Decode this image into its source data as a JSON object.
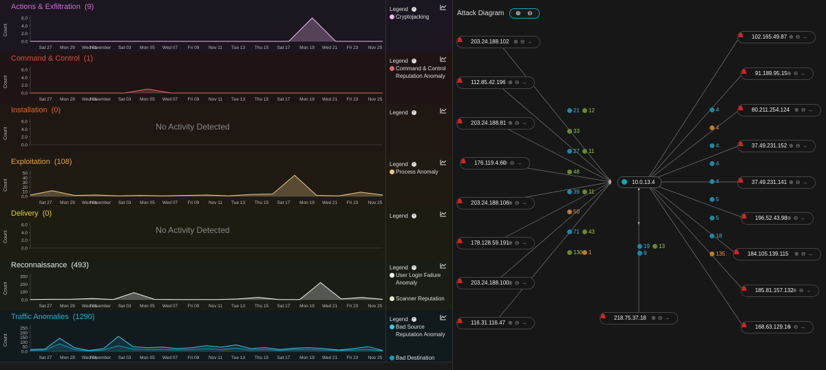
{
  "x_ticks": [
    "Sat 27",
    "Mon 29",
    "Wed 01",
    "November",
    "Sat 03",
    "Mon 05",
    "Wed 07",
    "Fri 09",
    "Nov 11",
    "Tue 13",
    "Thu 15",
    "Sat 17",
    "Mon 19",
    "Wed 21",
    "Fri 23",
    "Nov 25"
  ],
  "legend_label": "Legend",
  "no_activity": "No Activity Detected",
  "count_label": "Count",
  "panels": [
    {
      "title": "Actions & Exfiltration",
      "count": "(9)",
      "color": "#c76fd0",
      "bg": "#1c1620",
      "yticks": [
        "6.0",
        "4.0",
        "2.0",
        "0.0"
      ],
      "legend": [
        {
          "label": "Cryptojacking",
          "color": "#e8b8ee"
        }
      ]
    },
    {
      "title": "Command & Control",
      "count": "(1)",
      "color": "#e04545",
      "bg": "#1f1414",
      "yticks": [
        "6.0",
        "4.0",
        "2.0",
        "0.0"
      ],
      "legend": [
        {
          "label": "Command & Control Reputation Anomaly",
          "color": "#e26a6a"
        }
      ]
    },
    {
      "title": "Installation",
      "count": "(0)",
      "color": "#e0662d",
      "bg": "#1f1712",
      "yticks": [
        "6.0",
        "4.0",
        "2.0",
        "0.0"
      ],
      "legend": []
    },
    {
      "title": "Exploitation",
      "count": "(108)",
      "color": "#e0a24a",
      "bg": "#1f1a12",
      "yticks": [
        "50",
        "40",
        "30",
        "20",
        "10",
        "0.0"
      ],
      "legend": [
        {
          "label": "Process Anomaly",
          "color": "#f0c88a"
        }
      ]
    },
    {
      "title": "Delivery",
      "count": "(0)",
      "color": "#e0d02a",
      "bg": "#1d1c10",
      "yticks": [
        "6.0",
        "4.0",
        "2.0",
        "0.0"
      ],
      "legend": []
    },
    {
      "title": "Reconnaissance",
      "count": "(493)",
      "color": "#e8e8e8",
      "bg": "#1a1d15",
      "yticks": [
        "300",
        "200",
        "100",
        "0.0"
      ],
      "legend": [
        {
          "label": "User Login Failure Anomaly",
          "color": "#f2f2f2"
        },
        {
          "label": "Scanner Reputation",
          "color": "#e8e8c8"
        }
      ]
    },
    {
      "title": "Traffic Anomalies",
      "count": "(1290)",
      "color": "#2aaed0",
      "bg": "#111b1e",
      "yticks": [
        "250",
        "200",
        "150",
        "100",
        "50",
        "0.0"
      ],
      "legend": [
        {
          "label": "Bad Source Reputation Anomaly",
          "color": "#3cc8ec"
        },
        {
          "label": "Bad Destination Reputation",
          "color": "#1a9ab8"
        }
      ]
    }
  ],
  "chart_data": [
    {
      "type": "area",
      "title": "Actions & Exfiltration",
      "ylabel": "Count",
      "ylim": [
        0,
        6
      ],
      "categories_ref": "x_ticks",
      "series": [
        {
          "name": "Cryptojacking",
          "values": [
            0,
            0,
            0,
            0,
            0,
            0,
            0,
            0,
            0,
            0,
            0,
            0,
            6,
            0,
            0,
            0
          ]
        }
      ]
    },
    {
      "type": "area",
      "title": "Command & Control",
      "ylabel": "Count",
      "ylim": [
        0,
        6
      ],
      "series": [
        {
          "name": "Command & Control Reputation Anomaly",
          "values": [
            0,
            0,
            0,
            0,
            0,
            1,
            0,
            0,
            0,
            0,
            0,
            0,
            0,
            0,
            0,
            0
          ]
        }
      ]
    },
    {
      "type": "area",
      "title": "Exploitation",
      "ylabel": "Count",
      "ylim": [
        0,
        50
      ],
      "series": [
        {
          "name": "Process Anomaly",
          "values": [
            3,
            12,
            2,
            3,
            1,
            2,
            1,
            2,
            3,
            1,
            4,
            5,
            45,
            2,
            1,
            9,
            3
          ]
        }
      ]
    },
    {
      "type": "area",
      "title": "Reconnaissance",
      "ylabel": "Count",
      "ylim": [
        0,
        300
      ],
      "series": [
        {
          "name": "User Login Failure Anomaly",
          "values": [
            3,
            5,
            6,
            15,
            3,
            90,
            4,
            2,
            3,
            2,
            10,
            30,
            3,
            2,
            220,
            10,
            30,
            5
          ]
        }
      ]
    },
    {
      "type": "line",
      "title": "Traffic Anomalies",
      "ylabel": "Count",
      "ylim": [
        0,
        250
      ],
      "series": [
        {
          "name": "Bad Source Reputation Anomaly",
          "values": [
            20,
            25,
            140,
            40,
            10,
            30,
            160,
            50,
            40,
            45,
            30,
            40,
            60,
            45,
            70,
            30,
            40,
            20,
            35,
            40,
            30,
            15,
            30,
            50,
            10
          ]
        },
        {
          "name": "Bad Destination Reputation",
          "values": [
            10,
            15,
            80,
            20,
            5,
            15,
            60,
            25,
            20,
            20,
            15,
            20,
            30,
            20,
            35,
            15,
            20,
            10,
            20,
            20,
            15,
            10,
            15,
            20,
            5
          ]
        }
      ]
    }
  ],
  "attack_diagram": {
    "title": "Attack Diagram",
    "center": "10.0.13.4",
    "sources": [
      {
        "ip": "203.24.188.102"
      },
      {
        "ip": "112.85.42.196"
      },
      {
        "ip": "203.24.188.81"
      },
      {
        "ip": "176.119.4.60"
      },
      {
        "ip": "203.24.188.106"
      },
      {
        "ip": "178.128.59.191"
      },
      {
        "ip": "203.24.188.100"
      },
      {
        "ip": "116.31.116.47"
      },
      {
        "ip": "218.75.37.18"
      }
    ],
    "targets": [
      {
        "ip": "102.165.49.87"
      },
      {
        "ip": "91.189.95.15"
      },
      {
        "ip": "80.211.254.124"
      },
      {
        "ip": "37.49.231.152"
      },
      {
        "ip": "37.49.231.141"
      },
      {
        "ip": "196.52.43.98"
      },
      {
        "ip": "184.105.139.115"
      },
      {
        "ip": "185.81.157.132"
      },
      {
        "ip": "168.63.129.16"
      }
    ],
    "edge_badges": [
      {
        "text": "21",
        "color": "#1a8aa8"
      },
      {
        "text": "12",
        "color": "#6a8a2a"
      },
      {
        "text": "33",
        "color": "#6a8a2a"
      },
      {
        "text": "27",
        "color": "#1a8aa8"
      },
      {
        "text": "11",
        "color": "#6a8a2a"
      },
      {
        "text": "48",
        "color": "#6a8a2a"
      },
      {
        "text": "39",
        "color": "#1a8aa8"
      },
      {
        "text": "11",
        "color": "#6a8a2a"
      },
      {
        "text": "50",
        "color": "#c07a2a"
      },
      {
        "text": "71",
        "color": "#1a8aa8"
      },
      {
        "text": "43",
        "color": "#6a8a2a"
      },
      {
        "text": "130",
        "color": "#6a8a2a"
      },
      {
        "text": "1",
        "color": "#c07a2a"
      },
      {
        "text": "19",
        "color": "#1a8aa8"
      },
      {
        "text": "13",
        "color": "#6a8a2a"
      },
      {
        "text": "9",
        "color": "#1a8aa8"
      },
      {
        "text": "4",
        "color": "#1a8aa8"
      },
      {
        "text": "4",
        "color": "#c07a2a"
      },
      {
        "text": "4",
        "color": "#1a8aa8"
      },
      {
        "text": "4",
        "color": "#1a8aa8"
      },
      {
        "text": "4",
        "color": "#1a8aa8"
      },
      {
        "text": "5",
        "color": "#1a8aa8"
      },
      {
        "text": "5",
        "color": "#1a8aa8"
      },
      {
        "text": "18",
        "color": "#1a8aa8"
      },
      {
        "text": "135",
        "color": "#c07a2a"
      }
    ]
  }
}
